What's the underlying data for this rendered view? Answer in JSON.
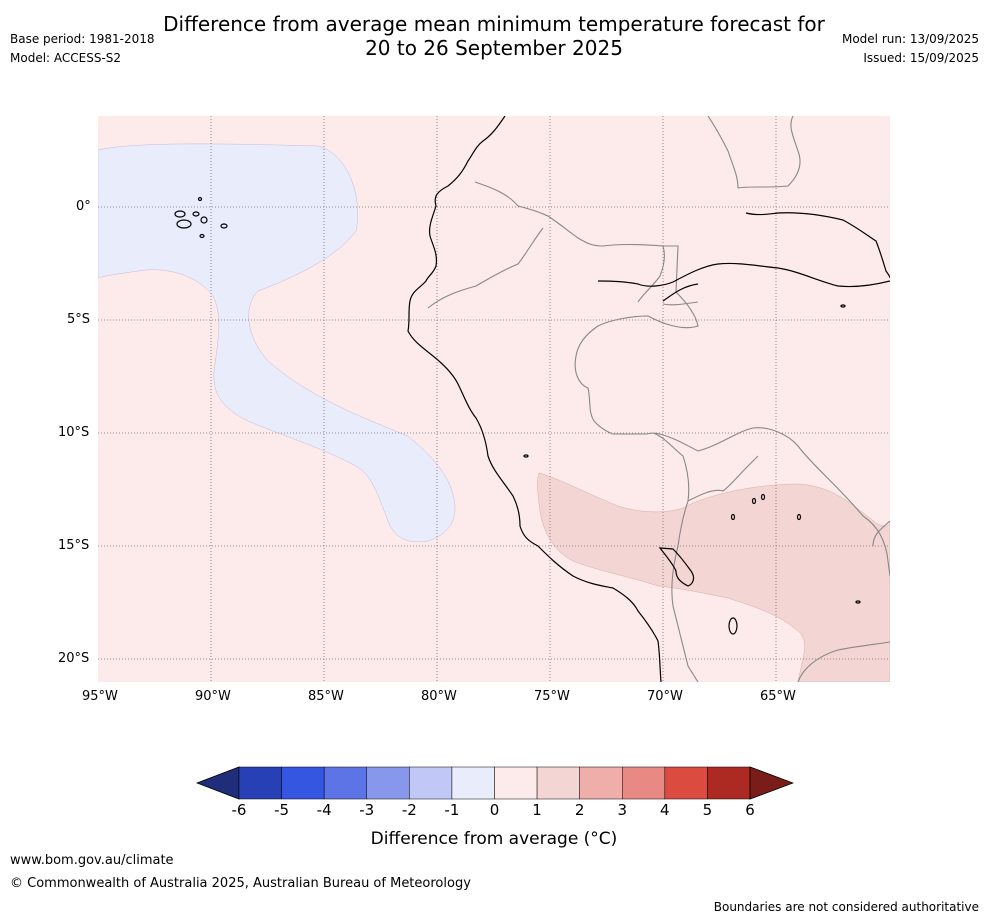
{
  "title_line1": "Difference from average mean minimum temperature forecast for",
  "title_line2": "20 to 26 September 2025",
  "meta": {
    "base_period": "Base period: 1981-2018",
    "model": "Model: ACCESS-S2",
    "model_run": "Model run: 13/09/2025",
    "issued": "Issued: 15/09/2025"
  },
  "map": {
    "lon_labels": [
      "95°W",
      "90°W",
      "85°W",
      "80°W",
      "75°W",
      "70°W",
      "65°W"
    ],
    "lat_labels": [
      "0°",
      "5°S",
      "10°S",
      "15°S",
      "20°S"
    ]
  },
  "colorbar": {
    "title": "Difference from average ($^\\circ$C)",
    "title_display": "Difference from average (°C)",
    "ticks": [
      "-6",
      "-5",
      "-4",
      "-3",
      "-2",
      "-1",
      "0",
      "1",
      "2",
      "3",
      "4",
      "5",
      "6"
    ],
    "colors": [
      "#1f2d7a",
      "#2840b5",
      "#3556e0",
      "#5d74e6",
      "#8797ec",
      "#c2c8f5",
      "#e8ecfb",
      "#fcebea",
      "#f3d5d3",
      "#efaea9",
      "#e88a83",
      "#db4b40",
      "#ac2a22",
      "#7a1d18"
    ]
  },
  "footer": {
    "url": "www.bom.gov.au/climate",
    "copyright": "© Commonwealth of Australia 2025, Australian Bureau of Meteorology",
    "note": "Boundaries are not considered authoritative"
  }
}
